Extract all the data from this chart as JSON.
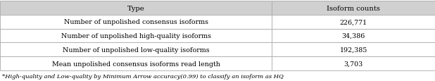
{
  "header": [
    "Type",
    "Isoform counts"
  ],
  "rows": [
    [
      "Number of unpolished consensus isoforms",
      "226,771"
    ],
    [
      "Number of unpolished high-quality isoforms",
      "34,386"
    ],
    [
      "Number of unpolished low-quality isoforms",
      "192,385"
    ],
    [
      "Mean unpolished consensus isoforms read length",
      "3,703"
    ]
  ],
  "footnote": "*High-quality and Low-quality by Minimum Arrow accuracy(0.99) to classify an isoform as HQ",
  "header_bg": "#d0d0d0",
  "row_bg": "#ffffff",
  "border_color": "#aaaaaa",
  "header_font_size": 7.2,
  "row_font_size": 6.8,
  "footnote_font_size": 6.0,
  "col_split": 0.625,
  "fig_width": 6.18,
  "fig_height": 1.16,
  "dpi": 100
}
